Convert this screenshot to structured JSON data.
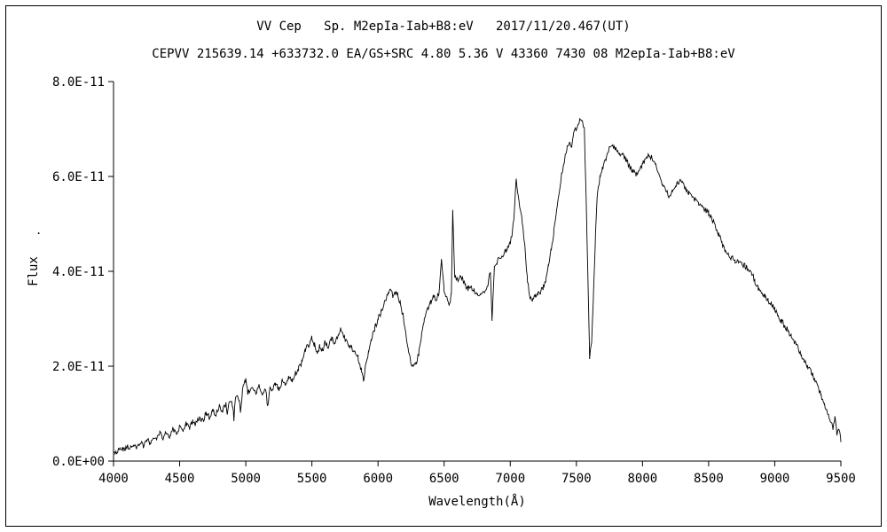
{
  "chart_data": {
    "type": "line",
    "title": "VV Cep   Sp. M2epIa-Iab+B8:eV   2017/11/20.467(UT)",
    "subtitle": "CEPVV 215639.14 +633732.0 EA/GS+SRC 4.80 5.36 V 43360 7430 08 M2epIa-Iab+B8:eV",
    "xlabel": "Wavelength(Å)",
    "ylabel": "Flux",
    "stray_dot": ".",
    "xlim": [
      4000,
      9500
    ],
    "ylim_e11": [
      0,
      8
    ],
    "flux_unit_note": "point flux values are in units of 1E-11",
    "x_ticks": [
      4000,
      4500,
      5000,
      5500,
      6000,
      6500,
      7000,
      7500,
      8000,
      8500,
      9000,
      9500
    ],
    "y_tick_values_e11": [
      0,
      2,
      4,
      6,
      8
    ],
    "y_tick_labels": [
      "0.0E+00",
      "2.0E-11",
      "4.0E-11",
      "6.0E-11",
      "8.0E-11"
    ],
    "grid": false,
    "legend": false,
    "line_color": "#000000",
    "background_color": "#ffffff",
    "noise_amplitude_e11": 0.06,
    "series": [
      {
        "name": "flux",
        "points_e11": [
          [
            4000,
            0.22
          ],
          [
            4025,
            0.18
          ],
          [
            4050,
            0.28
          ],
          [
            4075,
            0.22
          ],
          [
            4100,
            0.32
          ],
          [
            4125,
            0.25
          ],
          [
            4150,
            0.35
          ],
          [
            4175,
            0.3
          ],
          [
            4200,
            0.4
          ],
          [
            4225,
            0.33
          ],
          [
            4250,
            0.45
          ],
          [
            4275,
            0.38
          ],
          [
            4300,
            0.52
          ],
          [
            4325,
            0.42
          ],
          [
            4350,
            0.58
          ],
          [
            4375,
            0.48
          ],
          [
            4400,
            0.6
          ],
          [
            4425,
            0.52
          ],
          [
            4450,
            0.66
          ],
          [
            4475,
            0.58
          ],
          [
            4500,
            0.72
          ],
          [
            4525,
            0.65
          ],
          [
            4550,
            0.78
          ],
          [
            4575,
            0.7
          ],
          [
            4600,
            0.85
          ],
          [
            4625,
            0.78
          ],
          [
            4650,
            0.92
          ],
          [
            4675,
            0.85
          ],
          [
            4700,
            1.0
          ],
          [
            4725,
            0.92
          ],
          [
            4750,
            1.08
          ],
          [
            4775,
            0.98
          ],
          [
            4800,
            1.15
          ],
          [
            4825,
            1.05
          ],
          [
            4850,
            1.25
          ],
          [
            4860,
            0.95
          ],
          [
            4875,
            1.3
          ],
          [
            4900,
            1.2
          ],
          [
            4910,
            0.9
          ],
          [
            4925,
            1.4
          ],
          [
            4950,
            1.3
          ],
          [
            4960,
            1.05
          ],
          [
            4975,
            1.5
          ],
          [
            5000,
            1.7
          ],
          [
            5015,
            1.45
          ],
          [
            5050,
            1.55
          ],
          [
            5075,
            1.45
          ],
          [
            5100,
            1.58
          ],
          [
            5125,
            1.4
          ],
          [
            5150,
            1.55
          ],
          [
            5165,
            1.15
          ],
          [
            5185,
            1.55
          ],
          [
            5200,
            1.48
          ],
          [
            5225,
            1.62
          ],
          [
            5250,
            1.52
          ],
          [
            5275,
            1.68
          ],
          [
            5300,
            1.6
          ],
          [
            5325,
            1.75
          ],
          [
            5350,
            1.68
          ],
          [
            5375,
            1.85
          ],
          [
            5400,
            1.95
          ],
          [
            5425,
            2.1
          ],
          [
            5450,
            2.35
          ],
          [
            5475,
            2.45
          ],
          [
            5500,
            2.6
          ],
          [
            5520,
            2.45
          ],
          [
            5540,
            2.3
          ],
          [
            5560,
            2.42
          ],
          [
            5580,
            2.32
          ],
          [
            5600,
            2.5
          ],
          [
            5625,
            2.42
          ],
          [
            5650,
            2.58
          ],
          [
            5675,
            2.5
          ],
          [
            5700,
            2.68
          ],
          [
            5720,
            2.78
          ],
          [
            5740,
            2.62
          ],
          [
            5760,
            2.52
          ],
          [
            5780,
            2.45
          ],
          [
            5800,
            2.4
          ],
          [
            5825,
            2.3
          ],
          [
            5850,
            2.18
          ],
          [
            5875,
            1.9
          ],
          [
            5890,
            1.7
          ],
          [
            5910,
            2.05
          ],
          [
            5930,
            2.35
          ],
          [
            5950,
            2.6
          ],
          [
            5975,
            2.8
          ],
          [
            6000,
            3.0
          ],
          [
            6025,
            3.15
          ],
          [
            6050,
            3.35
          ],
          [
            6075,
            3.5
          ],
          [
            6100,
            3.6
          ],
          [
            6115,
            3.45
          ],
          [
            6130,
            3.58
          ],
          [
            6150,
            3.5
          ],
          [
            6170,
            3.3
          ],
          [
            6190,
            3.05
          ],
          [
            6210,
            2.7
          ],
          [
            6230,
            2.3
          ],
          [
            6250,
            2.08
          ],
          [
            6270,
            2.0
          ],
          [
            6290,
            2.1
          ],
          [
            6310,
            2.3
          ],
          [
            6330,
            2.65
          ],
          [
            6350,
            3.0
          ],
          [
            6375,
            3.2
          ],
          [
            6400,
            3.35
          ],
          [
            6420,
            3.5
          ],
          [
            6440,
            3.4
          ],
          [
            6460,
            3.55
          ],
          [
            6480,
            4.3
          ],
          [
            6500,
            3.6
          ],
          [
            6520,
            3.45
          ],
          [
            6540,
            3.3
          ],
          [
            6555,
            3.55
          ],
          [
            6565,
            5.3
          ],
          [
            6580,
            3.9
          ],
          [
            6600,
            3.8
          ],
          [
            6620,
            3.95
          ],
          [
            6640,
            3.82
          ],
          [
            6660,
            3.7
          ],
          [
            6680,
            3.62
          ],
          [
            6700,
            3.7
          ],
          [
            6725,
            3.6
          ],
          [
            6750,
            3.55
          ],
          [
            6775,
            3.5
          ],
          [
            6800,
            3.58
          ],
          [
            6825,
            3.65
          ],
          [
            6850,
            4.0
          ],
          [
            6862,
            3.0
          ],
          [
            6880,
            4.1
          ],
          [
            6900,
            4.2
          ],
          [
            6925,
            4.3
          ],
          [
            6950,
            4.38
          ],
          [
            6975,
            4.48
          ],
          [
            7000,
            4.6
          ],
          [
            7015,
            4.8
          ],
          [
            7030,
            5.2
          ],
          [
            7045,
            5.95
          ],
          [
            7060,
            5.55
          ],
          [
            7075,
            5.35
          ],
          [
            7090,
            5.05
          ],
          [
            7110,
            4.5
          ],
          [
            7130,
            3.8
          ],
          [
            7150,
            3.45
          ],
          [
            7170,
            3.4
          ],
          [
            7190,
            3.48
          ],
          [
            7210,
            3.52
          ],
          [
            7230,
            3.58
          ],
          [
            7250,
            3.65
          ],
          [
            7270,
            3.85
          ],
          [
            7290,
            4.15
          ],
          [
            7310,
            4.45
          ],
          [
            7330,
            4.85
          ],
          [
            7350,
            5.25
          ],
          [
            7370,
            5.65
          ],
          [
            7390,
            6.05
          ],
          [
            7410,
            6.35
          ],
          [
            7430,
            6.6
          ],
          [
            7450,
            6.72
          ],
          [
            7465,
            6.6
          ],
          [
            7480,
            6.88
          ],
          [
            7500,
            7.02
          ],
          [
            7520,
            7.15
          ],
          [
            7540,
            7.2
          ],
          [
            7560,
            7.0
          ],
          [
            7580,
            4.8
          ],
          [
            7600,
            2.2
          ],
          [
            7615,
            2.5
          ],
          [
            7630,
            3.6
          ],
          [
            7645,
            4.8
          ],
          [
            7660,
            5.7
          ],
          [
            7680,
            6.0
          ],
          [
            7700,
            6.2
          ],
          [
            7725,
            6.4
          ],
          [
            7750,
            6.58
          ],
          [
            7775,
            6.65
          ],
          [
            7800,
            6.58
          ],
          [
            7825,
            6.5
          ],
          [
            7850,
            6.45
          ],
          [
            7875,
            6.35
          ],
          [
            7900,
            6.22
          ],
          [
            7925,
            6.12
          ],
          [
            7950,
            6.05
          ],
          [
            7975,
            6.12
          ],
          [
            8000,
            6.28
          ],
          [
            8025,
            6.38
          ],
          [
            8050,
            6.45
          ],
          [
            8075,
            6.38
          ],
          [
            8100,
            6.25
          ],
          [
            8125,
            6.05
          ],
          [
            8150,
            5.85
          ],
          [
            8175,
            5.7
          ],
          [
            8200,
            5.6
          ],
          [
            8225,
            5.68
          ],
          [
            8250,
            5.8
          ],
          [
            8275,
            5.9
          ],
          [
            8300,
            5.85
          ],
          [
            8325,
            5.75
          ],
          [
            8350,
            5.65
          ],
          [
            8375,
            5.58
          ],
          [
            8400,
            5.5
          ],
          [
            8425,
            5.45
          ],
          [
            8450,
            5.38
          ],
          [
            8475,
            5.3
          ],
          [
            8500,
            5.22
          ],
          [
            8525,
            5.1
          ],
          [
            8550,
            4.95
          ],
          [
            8575,
            4.78
          ],
          [
            8600,
            4.6
          ],
          [
            8625,
            4.45
          ],
          [
            8650,
            4.35
          ],
          [
            8675,
            4.28
          ],
          [
            8700,
            4.22
          ],
          [
            8725,
            4.18
          ],
          [
            8750,
            4.15
          ],
          [
            8775,
            4.12
          ],
          [
            8800,
            4.05
          ],
          [
            8825,
            3.95
          ],
          [
            8850,
            3.8
          ],
          [
            8875,
            3.65
          ],
          [
            8900,
            3.52
          ],
          [
            8925,
            3.45
          ],
          [
            8950,
            3.38
          ],
          [
            8975,
            3.3
          ],
          [
            9000,
            3.2
          ],
          [
            9025,
            3.08
          ],
          [
            9050,
            2.95
          ],
          [
            9075,
            2.85
          ],
          [
            9100,
            2.75
          ],
          [
            9125,
            2.62
          ],
          [
            9150,
            2.5
          ],
          [
            9175,
            2.38
          ],
          [
            9200,
            2.25
          ],
          [
            9225,
            2.12
          ],
          [
            9250,
            2.0
          ],
          [
            9275,
            1.88
          ],
          [
            9300,
            1.75
          ],
          [
            9325,
            1.58
          ],
          [
            9350,
            1.4
          ],
          [
            9375,
            1.22
          ],
          [
            9400,
            1.02
          ],
          [
            9420,
            0.85
          ],
          [
            9440,
            0.68
          ],
          [
            9455,
            0.9
          ],
          [
            9470,
            0.55
          ],
          [
            9485,
            0.7
          ],
          [
            9500,
            0.4
          ]
        ]
      }
    ]
  }
}
